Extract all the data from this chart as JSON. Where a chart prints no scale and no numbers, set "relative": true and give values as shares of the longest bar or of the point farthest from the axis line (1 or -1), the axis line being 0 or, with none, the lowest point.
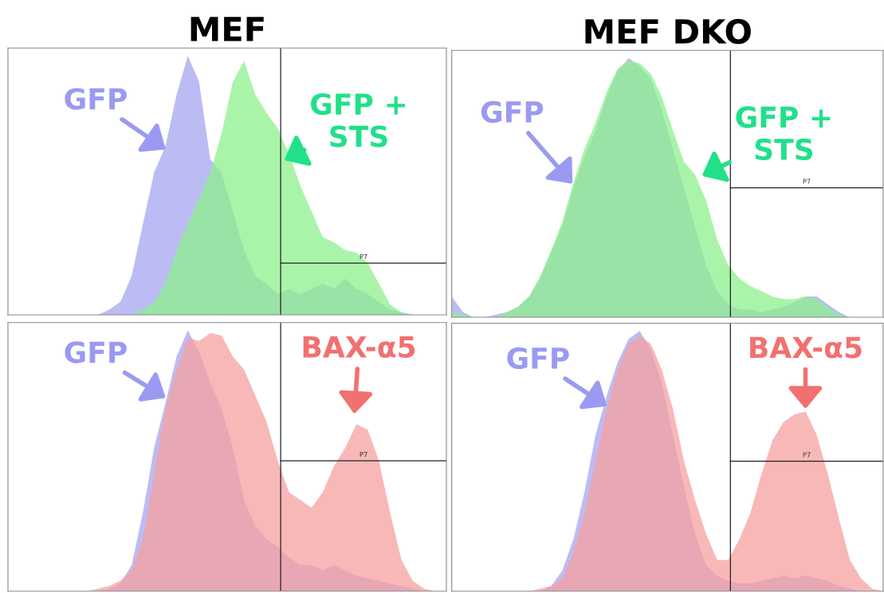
{
  "chart_data": [
    {
      "type": "area",
      "title": "MEF",
      "relative": true,
      "tick_labels": false,
      "categories": [
        null,
        null,
        null,
        null,
        null,
        null,
        null,
        null,
        null,
        null,
        null,
        null,
        null,
        null,
        null,
        null,
        null,
        null,
        null,
        null,
        null,
        null,
        null,
        null,
        null,
        null,
        null,
        null,
        null,
        null,
        null,
        null,
        null,
        null,
        null,
        null,
        null,
        null,
        null,
        null
      ],
      "series": [
        {
          "color": "#a6a6f0",
          "values": [
            0,
            0,
            0,
            0,
            0,
            0,
            0,
            0,
            0,
            0.02,
            0.05,
            0.15,
            0.35,
            0.55,
            0.65,
            0.85,
            1.0,
            0.9,
            0.6,
            0.55,
            0.4,
            0.25,
            0.15,
            0.12,
            0.08,
            0.1,
            0.08,
            0.1,
            0.12,
            0.1,
            0.14,
            0.1,
            0.08,
            0.05,
            0.02,
            0.01,
            0,
            0,
            0,
            0
          ]
        },
        {
          "color": "#8ef08e",
          "values": [
            0,
            0,
            0,
            0,
            0,
            0,
            0,
            0,
            0,
            0,
            0,
            0,
            0.02,
            0.05,
            0.12,
            0.25,
            0.35,
            0.45,
            0.55,
            0.7,
            0.9,
            0.98,
            0.85,
            0.78,
            0.72,
            0.62,
            0.5,
            0.4,
            0.3,
            0.28,
            0.25,
            0.24,
            0.2,
            0.12,
            0.04,
            0.01,
            0,
            0,
            0,
            0
          ]
        }
      ],
      "annotations": [
        "GFP",
        "GFP +\nSTS"
      ],
      "ref_lines": [
        {
          "axis": "y",
          "value": 0.2,
          "label": "P7"
        }
      ]
    },
    {
      "type": "area",
      "title": "MEF DKO",
      "relative": true,
      "tick_labels": false,
      "categories": [
        null,
        null,
        null,
        null,
        null,
        null,
        null,
        null,
        null,
        null,
        null,
        null,
        null,
        null,
        null,
        null,
        null,
        null,
        null,
        null,
        null,
        null,
        null,
        null,
        null,
        null,
        null,
        null,
        null,
        null,
        null,
        null,
        null,
        null,
        null,
        null,
        null,
        null,
        null,
        null
      ],
      "series": [
        {
          "color": "#a6a6f0",
          "values": [
            0.08,
            0.02,
            0,
            0,
            0.01,
            0.02,
            0.04,
            0.08,
            0.15,
            0.25,
            0.35,
            0.5,
            0.62,
            0.72,
            0.85,
            0.95,
            1.0,
            0.97,
            0.92,
            0.8,
            0.65,
            0.5,
            0.35,
            0.2,
            0.1,
            0.05,
            0.03,
            0.03,
            0.02,
            0.03,
            0.04,
            0.06,
            0.08,
            0.08,
            0.05,
            0.02,
            0,
            0,
            0,
            0
          ]
        },
        {
          "color": "#8ef08e",
          "values": [
            0.02,
            0.01,
            0,
            0,
            0,
            0.02,
            0.04,
            0.08,
            0.16,
            0.26,
            0.37,
            0.52,
            0.65,
            0.75,
            0.87,
            0.96,
            0.99,
            0.98,
            0.94,
            0.85,
            0.72,
            0.6,
            0.55,
            0.45,
            0.3,
            0.2,
            0.15,
            0.12,
            0.1,
            0.08,
            0.07,
            0.07,
            0.08,
            0.07,
            0.04,
            0.01,
            0,
            0,
            0,
            0
          ]
        }
      ],
      "annotations": [
        "GFP",
        "GFP +\nSTS"
      ],
      "ref_lines": [
        {
          "axis": "y",
          "value": 0.5,
          "label": "P7"
        }
      ]
    },
    {
      "type": "area",
      "relative": true,
      "tick_labels": false,
      "categories": [
        null,
        null,
        null,
        null,
        null,
        null,
        null,
        null,
        null,
        null,
        null,
        null,
        null,
        null,
        null,
        null,
        null,
        null,
        null,
        null,
        null,
        null,
        null,
        null,
        null,
        null,
        null,
        null,
        null,
        null,
        null,
        null,
        null,
        null,
        null,
        null,
        null,
        null,
        null,
        null
      ],
      "series": [
        {
          "color": "#a6a6f0",
          "values": [
            0,
            0,
            0,
            0,
            0,
            0,
            0,
            0,
            0,
            0.01,
            0.03,
            0.1,
            0.3,
            0.55,
            0.72,
            0.9,
            1.0,
            0.92,
            0.8,
            0.7,
            0.55,
            0.35,
            0.25,
            0.2,
            0.17,
            0.13,
            0.1,
            0.1,
            0.08,
            0.1,
            0.08,
            0.06,
            0.05,
            0.04,
            0.03,
            0.02,
            0.01,
            0,
            0,
            0
          ]
        },
        {
          "color": "#f5a0a0",
          "values": [
            0,
            0,
            0,
            0,
            0,
            0,
            0,
            0,
            0.01,
            0.02,
            0.04,
            0.08,
            0.2,
            0.45,
            0.7,
            0.85,
            0.97,
            0.96,
            0.99,
            0.98,
            0.9,
            0.85,
            0.75,
            0.65,
            0.5,
            0.38,
            0.35,
            0.32,
            0.38,
            0.48,
            0.55,
            0.64,
            0.62,
            0.5,
            0.3,
            0.12,
            0.04,
            0.01,
            0,
            0
          ]
        }
      ],
      "annotations": [
        "GFP",
        "BAX-α5"
      ],
      "ref_lines": [
        {
          "axis": "y",
          "value": 0.5,
          "label": "P7"
        }
      ]
    },
    {
      "type": "area",
      "relative": true,
      "tick_labels": false,
      "categories": [
        null,
        null,
        null,
        null,
        null,
        null,
        null,
        null,
        null,
        null,
        null,
        null,
        null,
        null,
        null,
        null,
        null,
        null,
        null,
        null,
        null,
        null,
        null,
        null,
        null,
        null,
        null,
        null,
        null,
        null,
        null,
        null,
        null,
        null,
        null,
        null,
        null,
        null,
        null,
        null
      ],
      "series": [
        {
          "color": "#a6a6f0",
          "values": [
            0,
            0,
            0,
            0,
            0,
            0,
            0,
            0,
            0,
            0.02,
            0.08,
            0.2,
            0.38,
            0.6,
            0.75,
            0.88,
            0.97,
            1.0,
            0.93,
            0.8,
            0.6,
            0.4,
            0.22,
            0.1,
            0.06,
            0.04,
            0.03,
            0.03,
            0.04,
            0.05,
            0.06,
            0.05,
            0.06,
            0.05,
            0.04,
            0.02,
            0.01,
            0,
            0,
            0
          ]
        },
        {
          "color": "#f5a0a0",
          "values": [
            0,
            0,
            0,
            0,
            0,
            0,
            0,
            0,
            0.01,
            0.02,
            0.05,
            0.15,
            0.3,
            0.5,
            0.7,
            0.85,
            0.95,
            0.98,
            0.95,
            0.85,
            0.7,
            0.5,
            0.35,
            0.22,
            0.12,
            0.12,
            0.2,
            0.3,
            0.45,
            0.58,
            0.65,
            0.68,
            0.69,
            0.6,
            0.45,
            0.28,
            0.12,
            0.05,
            0.01,
            0
          ]
        }
      ],
      "annotations": [
        "GFP",
        "BAX-α5"
      ],
      "ref_lines": [
        {
          "axis": "y",
          "value": 0.5,
          "label": "P7"
        }
      ]
    }
  ]
}
